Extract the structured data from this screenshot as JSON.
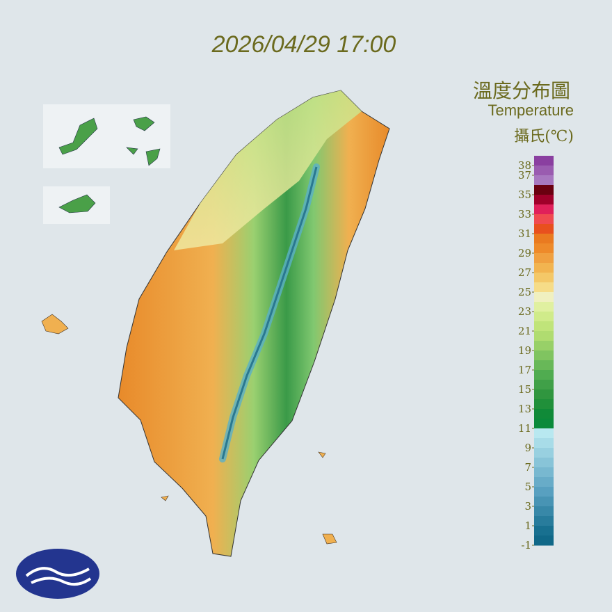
{
  "timestamp": "2026/04/29 17:00",
  "title": "溫度分布圖",
  "subtitle": "Temperature",
  "unit": "攝氏(℃)",
  "legend": {
    "lim": [
      -1,
      39
    ],
    "ticks": [
      38,
      37,
      35,
      33,
      31,
      29,
      27,
      25,
      23,
      21,
      19,
      17,
      15,
      13,
      11,
      9,
      7,
      5,
      3,
      1,
      -1
    ],
    "colors": [
      "#8a3fa0",
      "#9a5cb0",
      "#a878c0",
      "#6a0010",
      "#a0002a",
      "#e0205a",
      "#f04a50",
      "#e8501e",
      "#ea7a20",
      "#ee8a2a",
      "#f0a040",
      "#f2b450",
      "#f4c868",
      "#f6dc88",
      "#f0f0c0",
      "#e0f0a0",
      "#d0eb8a",
      "#c0e47a",
      "#b0dc70",
      "#98d068",
      "#80c460",
      "#68b858",
      "#50ac50",
      "#40a048",
      "#30963f",
      "#20903a",
      "#108a38",
      "#0a8a3a",
      "#b8e8f0",
      "#a8dce8",
      "#98d0e0",
      "#88c4d8",
      "#78b8d0",
      "#68acc8",
      "#58a0c0",
      "#4894b4",
      "#3888a8",
      "#287c9c",
      "#187090",
      "#106888"
    ]
  }
}
